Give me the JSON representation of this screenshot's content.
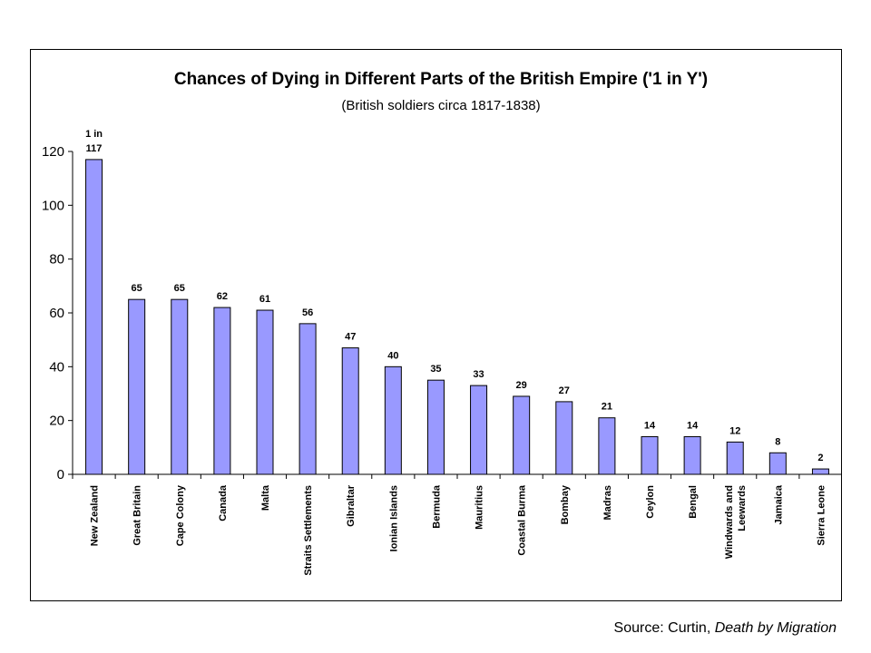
{
  "chart_data": {
    "type": "bar",
    "title": "Chances of Dying in Different Parts of the British Empire ('1 in Y')",
    "subtitle": "(British soldiers circa 1817-1838)",
    "annotation": "1 in",
    "categories": [
      "New Zealand",
      "Great Britain",
      "Cape Colony",
      "Canada",
      "Malta",
      "Straits Settlements",
      "Gibraltar",
      "Ionian Islands",
      "Bermuda",
      "Mauritius",
      "Coastal Burma",
      "Bombay",
      "Madras",
      "Ceylon",
      "Bengal",
      "Windwards and Leewards",
      "Jamaica",
      "Sierra Leone"
    ],
    "category_lines": [
      [
        "New Zealand"
      ],
      [
        "Great Britain"
      ],
      [
        "Cape Colony"
      ],
      [
        "Canada"
      ],
      [
        "Malta"
      ],
      [
        "Straits Settlements"
      ],
      [
        "Gibraltar"
      ],
      [
        "Ionian Islands"
      ],
      [
        "Bermuda"
      ],
      [
        "Mauritius"
      ],
      [
        "Coastal Burma"
      ],
      [
        "Bombay"
      ],
      [
        "Madras"
      ],
      [
        "Ceylon"
      ],
      [
        "Bengal"
      ],
      [
        "Windwards and",
        "Leewards"
      ],
      [
        "Jamaica"
      ],
      [
        "Sierra Leone"
      ]
    ],
    "values": [
      117,
      65,
      65,
      62,
      61,
      56,
      47,
      40,
      35,
      33,
      29,
      27,
      21,
      14,
      14,
      12,
      8,
      2
    ],
    "ylim": [
      0,
      120
    ],
    "yticks": [
      0,
      20,
      40,
      60,
      80,
      100,
      120
    ],
    "xlabel": "",
    "ylabel": "",
    "grid": false,
    "bar_color": "#9999ff",
    "bar_edge": "#000000"
  },
  "source": {
    "prefix": "Source: Curtin, ",
    "title": "Death by Migration"
  }
}
